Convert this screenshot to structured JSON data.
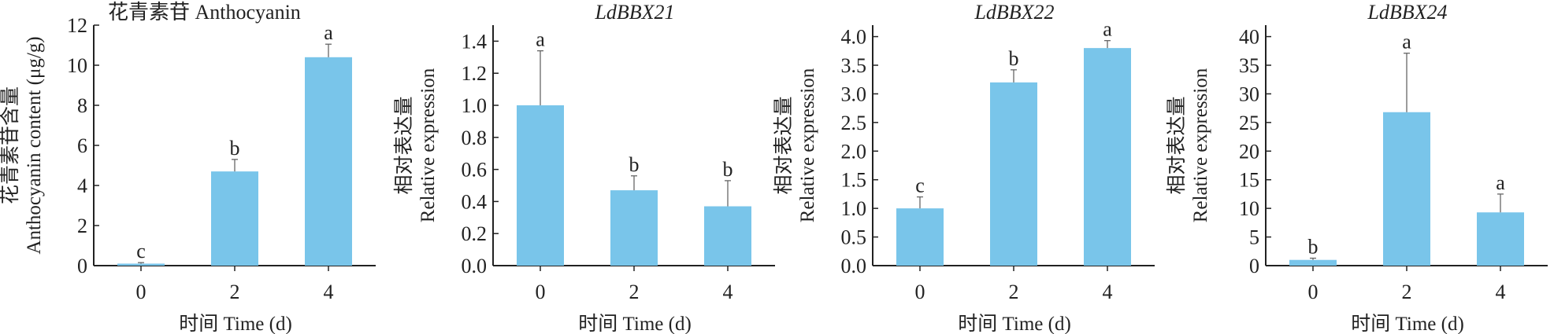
{
  "chart_data": [
    {
      "type": "bar",
      "title": "花青素苷 Anthocyanin",
      "title_italic": false,
      "ylabel": [
        "花青素苷含量",
        "Anthocyanin content (μg/g)"
      ],
      "xlabel": "时间 Time (d)",
      "categories": [
        "0",
        "2",
        "4"
      ],
      "values": [
        0.1,
        4.7,
        10.4
      ],
      "errors": [
        0.05,
        0.6,
        0.65
      ],
      "letters": [
        "c",
        "b",
        "a"
      ],
      "ylim": [
        0,
        12
      ],
      "yticks": [
        0,
        2,
        4,
        6,
        8,
        10,
        12
      ],
      "ytick_labels": [
        "0",
        "2",
        "4",
        "6",
        "8",
        "10",
        "12"
      ],
      "color": "#79C5EA"
    },
    {
      "type": "bar",
      "title": "LdBBX21",
      "title_italic": true,
      "ylabel": [
        "相对表达量",
        "Relative expression"
      ],
      "xlabel": "时间 Time (d)",
      "categories": [
        "0",
        "2",
        "4"
      ],
      "values": [
        1.0,
        0.47,
        0.37
      ],
      "errors": [
        0.34,
        0.09,
        0.16
      ],
      "letters": [
        "a",
        "b",
        "b"
      ],
      "ylim": [
        0,
        1.5
      ],
      "yticks": [
        0,
        0.2,
        0.4,
        0.6,
        0.8,
        1.0,
        1.2,
        1.4
      ],
      "ytick_labels": [
        "0.0",
        "0.2",
        "0.4",
        "0.6",
        "0.8",
        "1.0",
        "1.2",
        "1.4"
      ],
      "color": "#79C5EA"
    },
    {
      "type": "bar",
      "title": "LdBBX22",
      "title_italic": true,
      "ylabel": [
        "相对表达量",
        "Relative expression"
      ],
      "xlabel": "时间 Time (d)",
      "categories": [
        "0",
        "2",
        "4"
      ],
      "values": [
        1.0,
        3.2,
        3.8
      ],
      "errors": [
        0.2,
        0.22,
        0.13
      ],
      "letters": [
        "c",
        "b",
        "a"
      ],
      "ylim": [
        0,
        4.2
      ],
      "yticks": [
        0,
        0.5,
        1.0,
        1.5,
        2.0,
        2.5,
        3.0,
        3.5,
        4.0
      ],
      "ytick_labels": [
        "0.0",
        "0.5",
        "1.0",
        "1.5",
        "2.0",
        "2.5",
        "3.0",
        "3.5",
        "4.0"
      ],
      "color": "#79C5EA"
    },
    {
      "type": "bar",
      "title": "LdBBX24",
      "title_italic": true,
      "ylabel": [
        "相对表达量",
        "Relative expression"
      ],
      "xlabel": "时间 Time (d)",
      "categories": [
        "0",
        "2",
        "4"
      ],
      "values": [
        1.0,
        26.8,
        9.3
      ],
      "errors": [
        0.3,
        10.3,
        3.2
      ],
      "letters": [
        "b",
        "a",
        "a"
      ],
      "ylim": [
        0,
        42
      ],
      "yticks": [
        0,
        5,
        10,
        15,
        20,
        25,
        30,
        35,
        40
      ],
      "ytick_labels": [
        "0",
        "5",
        "10",
        "15",
        "20",
        "25",
        "30",
        "35",
        "40"
      ],
      "color": "#79C5EA"
    }
  ]
}
